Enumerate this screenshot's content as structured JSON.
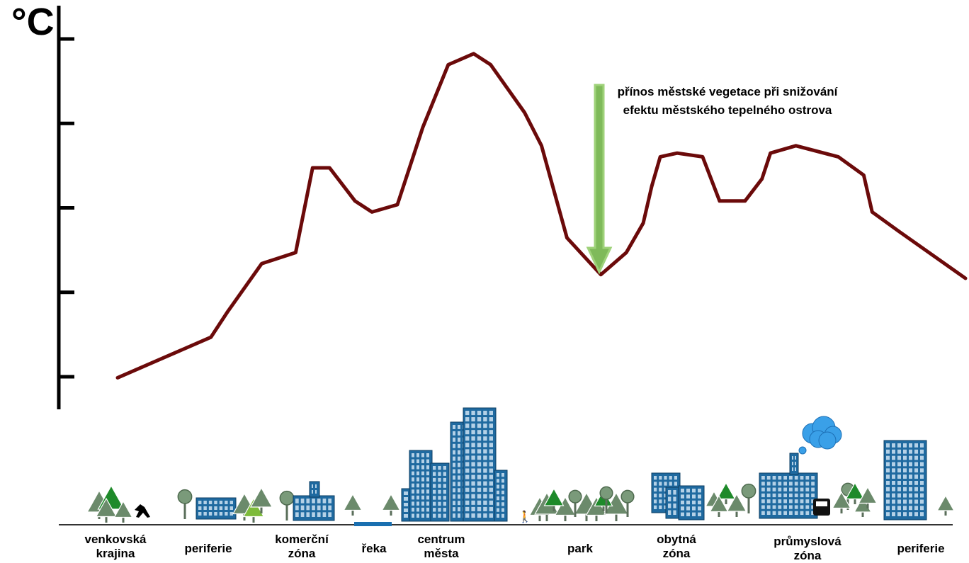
{
  "y_axis_unit": "°C",
  "annotation": "přínos městské vegetace při snižování efektu městského tepelného ostrova",
  "colors": {
    "curve": "#6b0a0a",
    "arrow": "#7fba5a",
    "building": "#1f6aa0",
    "tree": "#6b8a6b",
    "river": "#1a6fb0",
    "cloud": "#3aa0e8"
  },
  "zones": [
    {
      "label": "venkovská\nkrajina"
    },
    {
      "label": "periferie"
    },
    {
      "label": "komerční\nzóna"
    },
    {
      "label": "řeka"
    },
    {
      "label": "centrum\nměsta"
    },
    {
      "label": "park"
    },
    {
      "label": "obytná\nzóna"
    },
    {
      "label": "průmyslová\nzóna"
    },
    {
      "label": "periferie"
    }
  ],
  "chart_data": {
    "type": "line",
    "title": "",
    "xlabel": "",
    "ylabel": "°C",
    "y_ticks": 5,
    "series": [
      {
        "values": [
          [
            0.0,
            0.08
          ],
          [
            0.11,
            0.19
          ],
          [
            0.13,
            0.26
          ],
          [
            0.17,
            0.39
          ],
          [
            0.21,
            0.42
          ],
          [
            0.23,
            0.65
          ],
          [
            0.25,
            0.65
          ],
          [
            0.28,
            0.56
          ],
          [
            0.3,
            0.53
          ],
          [
            0.33,
            0.55
          ],
          [
            0.36,
            0.76
          ],
          [
            0.39,
            0.93
          ],
          [
            0.42,
            0.96
          ],
          [
            0.44,
            0.93
          ],
          [
            0.48,
            0.8
          ],
          [
            0.5,
            0.71
          ],
          [
            0.53,
            0.46
          ],
          [
            0.57,
            0.36
          ],
          [
            0.6,
            0.42
          ],
          [
            0.62,
            0.5
          ],
          [
            0.63,
            0.6
          ],
          [
            0.64,
            0.68
          ],
          [
            0.66,
            0.69
          ],
          [
            0.69,
            0.68
          ],
          [
            0.71,
            0.56
          ],
          [
            0.74,
            0.56
          ],
          [
            0.76,
            0.62
          ],
          [
            0.77,
            0.69
          ],
          [
            0.8,
            0.71
          ],
          [
            0.85,
            0.68
          ],
          [
            0.88,
            0.63
          ],
          [
            0.89,
            0.53
          ],
          [
            0.92,
            0.48
          ],
          [
            1.0,
            0.35
          ]
        ]
      }
    ]
  }
}
